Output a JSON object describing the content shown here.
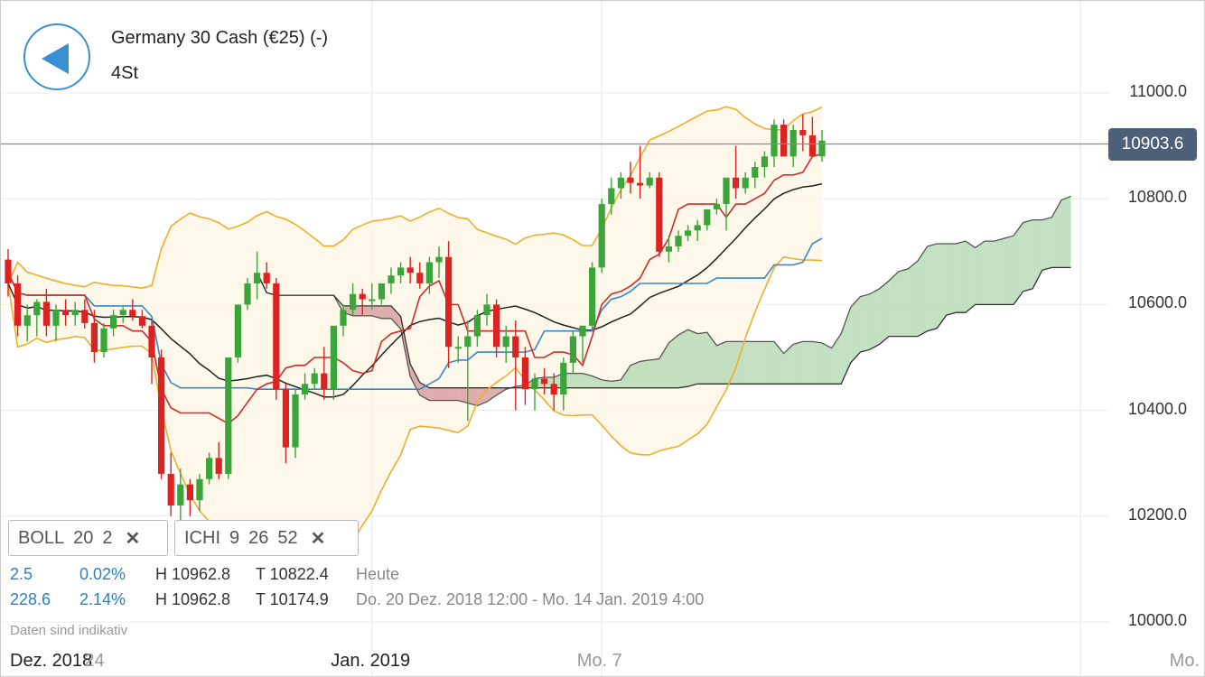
{
  "header": {
    "title": "Germany 30 Cash (€25) (-)",
    "period": "4St",
    "back_icon": "back-arrow-icon"
  },
  "indicators": [
    {
      "name": "BOLL",
      "params": [
        "20",
        "2"
      ],
      "close_icon": "close-icon"
    },
    {
      "name": "ICHI",
      "params": [
        "9",
        "26",
        "52"
      ],
      "close_icon": "close-icon"
    }
  ],
  "stats": [
    {
      "change": "2.5",
      "change_pct": "0.02%",
      "high": "H 10962.8",
      "low": "T 10822.4",
      "range": "Heute"
    },
    {
      "change": "228.6",
      "change_pct": "2.14%",
      "high": "H 10962.8",
      "low": "T 10174.9",
      "range": "Do. 20 Dez. 2018 12:00 - Mo. 14 Jan. 2019 4:00"
    }
  ],
  "note": "Daten sind indikativ",
  "colors": {
    "up": "#3aa63a",
    "down": "#dd2222",
    "bollinger": "#f0ad2a",
    "tenkan": "#d22a2a",
    "kijun": "#3a86c8",
    "chikou": "#333333",
    "kumo_bear": "#d9a0a0",
    "kumo_bull": "#b8dbb8",
    "price_tag": "#4d607a",
    "accent": "#3a8fd0"
  },
  "chart_data": {
    "type": "candlestick",
    "last_price": "10903.6",
    "ylim": [
      9980,
      11140
    ],
    "y_ticks": [
      10000,
      10200,
      10400,
      10600,
      10800,
      11000
    ],
    "y_tick_labels": [
      "10000.0",
      "10200.0",
      "10400.0",
      "10600.0",
      "10800.0",
      "11000.0"
    ],
    "x_labels": [
      {
        "text": "Dez. 2018",
        "bar": 0,
        "style": "dark"
      },
      {
        "text": "24",
        "bar": 9,
        "style": "grey"
      },
      {
        "text": "Jan. 2019",
        "bar": 38,
        "style": "dark"
      },
      {
        "text": "Mo. 7",
        "bar": 62,
        "style": "grey"
      },
      {
        "text": "Mo.",
        "bar": 112,
        "style": "grey"
      }
    ],
    "candles": [
      [
        10685,
        10705,
        10615,
        10640
      ],
      [
        10640,
        10655,
        10540,
        10560
      ],
      [
        10560,
        10600,
        10530,
        10580
      ],
      [
        10580,
        10610,
        10540,
        10605
      ],
      [
        10605,
        10630,
        10540,
        10560
      ],
      [
        10560,
        10600,
        10530,
        10590
      ],
      [
        10590,
        10610,
        10560,
        10580
      ],
      [
        10580,
        10605,
        10560,
        10590
      ],
      [
        10590,
        10610,
        10555,
        10565
      ],
      [
        10565,
        10590,
        10490,
        10510
      ],
      [
        10510,
        10565,
        10500,
        10555
      ],
      [
        10555,
        10590,
        10540,
        10580
      ],
      [
        10580,
        10595,
        10565,
        10590
      ],
      [
        10590,
        10610,
        10570,
        10578
      ],
      [
        10578,
        10590,
        10555,
        10560
      ],
      [
        10560,
        10570,
        10450,
        10500
      ],
      [
        10500,
        10515,
        10270,
        10280
      ],
      [
        10280,
        10320,
        10200,
        10220
      ],
      [
        10220,
        10290,
        10180,
        10260
      ],
      [
        10260,
        10270,
        10200,
        10230
      ],
      [
        10230,
        10280,
        10210,
        10270
      ],
      [
        10270,
        10320,
        10260,
        10310
      ],
      [
        10310,
        10340,
        10270,
        10280
      ],
      [
        10280,
        10500,
        10270,
        10500
      ],
      [
        10500,
        10600,
        10490,
        10600
      ],
      [
        10600,
        10650,
        10590,
        10640
      ],
      [
        10640,
        10700,
        10610,
        10660
      ],
      [
        10660,
        10680,
        10630,
        10640
      ],
      [
        10640,
        10650,
        10420,
        10440
      ],
      [
        10440,
        10450,
        10300,
        10330
      ],
      [
        10330,
        10440,
        10310,
        10430
      ],
      [
        10430,
        10470,
        10420,
        10450
      ],
      [
        10450,
        10480,
        10440,
        10470
      ],
      [
        10470,
        10520,
        10420,
        10440
      ],
      [
        10440,
        10560,
        10420,
        10560
      ],
      [
        10560,
        10600,
        10540,
        10590
      ],
      [
        10590,
        10640,
        10580,
        10620
      ],
      [
        10620,
        10630,
        10580,
        10610
      ],
      [
        10610,
        10640,
        10590,
        10610
      ],
      [
        10610,
        10640,
        10600,
        10640
      ],
      [
        10640,
        10670,
        10620,
        10655
      ],
      [
        10655,
        10680,
        10640,
        10670
      ],
      [
        10670,
        10690,
        10640,
        10660
      ],
      [
        10660,
        10680,
        10630,
        10640
      ],
      [
        10640,
        10690,
        10620,
        10680
      ],
      [
        10680,
        10710,
        10650,
        10690
      ],
      [
        10690,
        10720,
        10480,
        10520
      ],
      [
        10520,
        10540,
        10490,
        10520
      ],
      [
        10520,
        10570,
        10380,
        10540
      ],
      [
        10540,
        10590,
        10520,
        10580
      ],
      [
        10580,
        10620,
        10560,
        10600
      ],
      [
        10600,
        10610,
        10500,
        10520
      ],
      [
        10520,
        10560,
        10490,
        10540
      ],
      [
        10540,
        10570,
        10400,
        10500
      ],
      [
        10500,
        10520,
        10410,
        10440
      ],
      [
        10440,
        10470,
        10400,
        10460
      ],
      [
        10460,
        10480,
        10430,
        10450
      ],
      [
        10450,
        10470,
        10400,
        10430
      ],
      [
        10430,
        10500,
        10400,
        10490
      ],
      [
        10490,
        10550,
        10470,
        10540
      ],
      [
        10540,
        10560,
        10490,
        10560
      ],
      [
        10560,
        10680,
        10550,
        10670
      ],
      [
        10670,
        10800,
        10660,
        10790
      ],
      [
        10790,
        10840,
        10770,
        10820
      ],
      [
        10820,
        10850,
        10800,
        10840
      ],
      [
        10840,
        10870,
        10810,
        10830
      ],
      [
        10830,
        10900,
        10800,
        10825
      ],
      [
        10825,
        10850,
        10820,
        10840
      ],
      [
        10840,
        10850,
        10690,
        10700
      ],
      [
        10700,
        10730,
        10680,
        10710
      ],
      [
        10710,
        10740,
        10700,
        10730
      ],
      [
        10730,
        10750,
        10720,
        10740
      ],
      [
        10740,
        10760,
        10720,
        10750
      ],
      [
        10750,
        10780,
        10740,
        10780
      ],
      [
        10780,
        10800,
        10770,
        10790
      ],
      [
        10790,
        10830,
        10740,
        10840
      ],
      [
        10840,
        10900,
        10800,
        10820
      ],
      [
        10820,
        10850,
        10810,
        10840
      ],
      [
        10840,
        10870,
        10820,
        10860
      ],
      [
        10860,
        10890,
        10840,
        10880
      ],
      [
        10880,
        10950,
        10860,
        10940
      ],
      [
        10940,
        10950,
        10880,
        10880
      ],
      [
        10880,
        10940,
        10860,
        10930
      ],
      [
        10930,
        10960,
        10890,
        10920
      ],
      [
        10920,
        10955,
        10880,
        10880
      ],
      [
        10880,
        10930,
        10870,
        10910
      ]
    ]
  }
}
